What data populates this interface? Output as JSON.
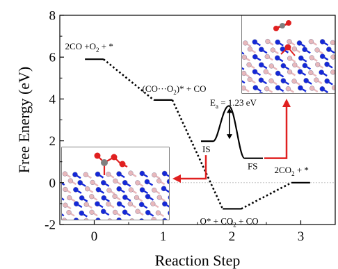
{
  "chart_data": {
    "type": "line",
    "xlabel": "Reaction Step",
    "ylabel": "Free Energy (eV)",
    "xlim": [
      -0.5,
      3.5
    ],
    "ylim": [
      -2,
      8
    ],
    "xticks": [
      "0",
      "1",
      "2",
      "3"
    ],
    "yticks": [
      "-2",
      "0",
      "2",
      "4",
      "6",
      "8"
    ],
    "grid": false,
    "legend": "none",
    "levels": [
      {
        "step": 0,
        "energy": 5.9,
        "label_parts": [
          {
            "t": "2CO +O"
          },
          {
            "t": "2",
            "sub": true
          },
          {
            "t": " + *"
          }
        ]
      },
      {
        "step": 1,
        "energy": 3.95,
        "label_parts": [
          {
            "t": "(CO···O"
          },
          {
            "t": "2",
            "sub": true
          },
          {
            "t": ")* + CO"
          }
        ]
      },
      {
        "step": 2,
        "energy": -1.25,
        "label_parts": [
          {
            "t": "O* + CO"
          },
          {
            "t": "2",
            "sub": true
          },
          {
            "t": " + CO"
          }
        ]
      },
      {
        "step": 3,
        "energy": 0.0,
        "label_parts": [
          {
            "t": "2CO"
          },
          {
            "t": "2",
            "sub": true
          },
          {
            "t": " + *"
          }
        ]
      }
    ],
    "inset_profile": {
      "is_energy": 2.0,
      "ts_energy": 3.4,
      "fs_energy": 1.2,
      "is_label": "IS",
      "fs_label": "FS",
      "barrier_label_parts": [
        {
          "t": "E"
        },
        {
          "t": "a",
          "sub": true
        },
        {
          "t": " = 1.23 eV"
        }
      ]
    },
    "zero_line": true,
    "colors": {
      "profile": "#000000",
      "arrow": "#e02020",
      "zero_line": "#bbbbbb",
      "atom_b": "#1428d8",
      "atom_n": "#e8b8bc",
      "atom_o": "#e02020",
      "atom_c": "#808080"
    }
  }
}
